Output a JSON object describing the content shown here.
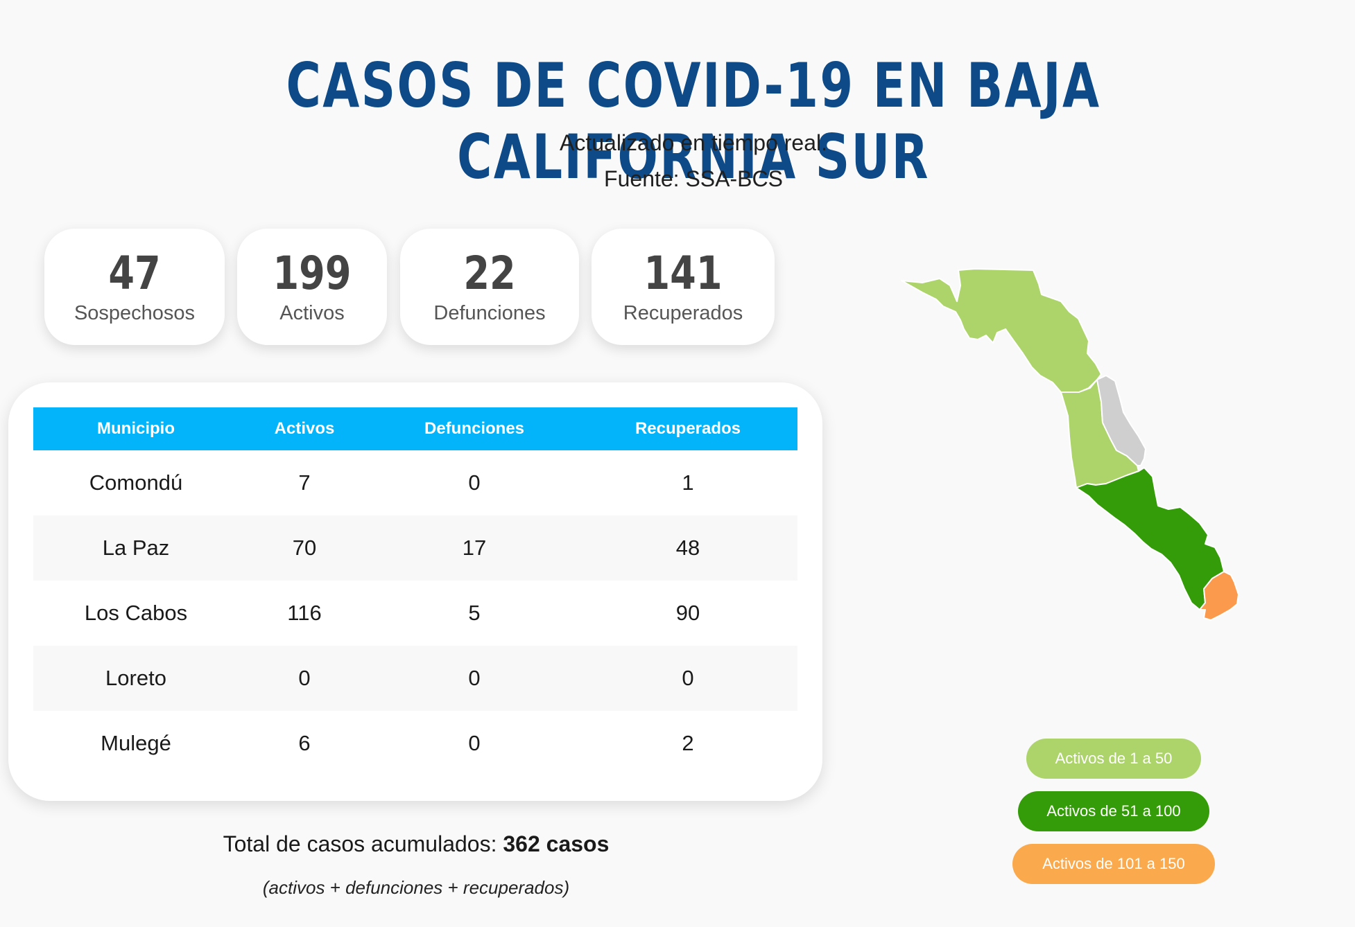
{
  "header": {
    "title": "CASOS DE COVID-19 EN BAJA CALIFORNIA SUR",
    "subtitle": "Actualizado en tiempo real.",
    "source": "Fuente: SSA-BCS"
  },
  "stats": [
    {
      "number": "47",
      "label": "Sospechosos"
    },
    {
      "number": "199",
      "label": "Activos"
    },
    {
      "number": "22",
      "label": "Defunciones"
    },
    {
      "number": "141",
      "label": "Recuperados"
    }
  ],
  "table": {
    "headers": [
      "Municipio",
      "Activos",
      "Defunciones",
      "Recuperados"
    ],
    "rows": [
      [
        "Comondú",
        "7",
        "0",
        "1"
      ],
      [
        "La Paz",
        "70",
        "17",
        "48"
      ],
      [
        "Los Cabos",
        "116",
        "5",
        "90"
      ],
      [
        "Loreto",
        "0",
        "0",
        "0"
      ],
      [
        "Mulegé",
        "6",
        "0",
        "2"
      ]
    ]
  },
  "totals": {
    "prefix": "Total de casos acumulados:",
    "value": "362 casos",
    "note": "(activos + defunciones + recuperados)"
  },
  "legend": [
    {
      "label": "Activos de 1 a 50",
      "color": "#acd46a"
    },
    {
      "label": "Activos de 51 a 100",
      "color": "#349c08"
    },
    {
      "label": "Activos de 101 a 150",
      "color": "#fba94d"
    }
  ],
  "map_regions": [
    {
      "name": "Mulegé",
      "color": "#acd46a"
    },
    {
      "name": "Comondú",
      "color": "#acd46a"
    },
    {
      "name": "Loreto",
      "color": "#cfcfcf"
    },
    {
      "name": "La Paz",
      "color": "#349c08"
    },
    {
      "name": "Los Cabos",
      "color": "#fb9a4d"
    }
  ]
}
